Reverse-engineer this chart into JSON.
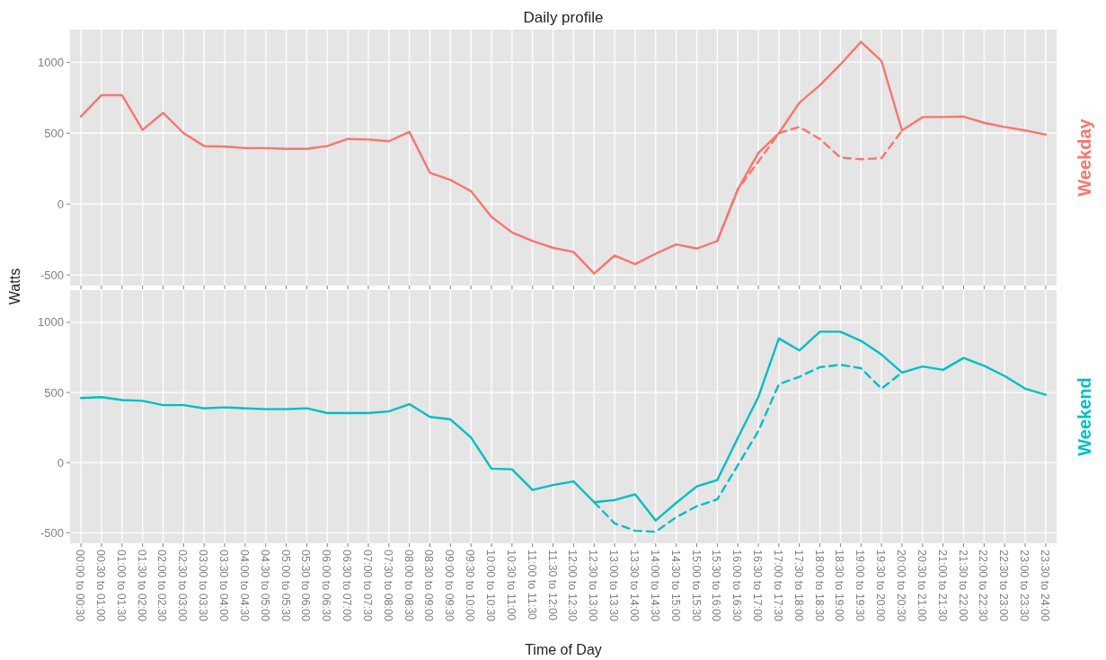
{
  "chart_data": [
    {
      "type": "line",
      "title": "Daily profile",
      "annotations": [
        "Weekday"
      ],
      "ylabel": "Watts",
      "tick_labels": "y",
      "grid": true,
      "ylim": [
        -575,
        1230
      ],
      "yticks": [
        -500,
        0,
        500,
        1000
      ],
      "categories": [
        null,
        null,
        null,
        null,
        null,
        null,
        null,
        null,
        null,
        null,
        null,
        null,
        null,
        null,
        null,
        null,
        null,
        null,
        null,
        null,
        null,
        null,
        null,
        null,
        null,
        null,
        null,
        null,
        null,
        null,
        null,
        null,
        null,
        null,
        null,
        null,
        null,
        null,
        null,
        null,
        null,
        null,
        null,
        null,
        null,
        null,
        null,
        null
      ],
      "series": [
        {
          "color": "#f8766d",
          "line_style": "solid",
          "values": [
            618,
            768,
            768,
            523,
            643,
            500,
            409,
            405,
            395,
            395,
            389,
            389,
            409,
            459,
            455,
            443,
            509,
            220,
            170,
            91,
            -91,
            -200,
            -261,
            -309,
            -338,
            -490,
            -363,
            -424,
            -350,
            -284,
            -314,
            -260,
            103,
            360,
            500,
            715,
            838,
            985,
            1144,
            1009,
            519,
            613,
            613,
            617,
            573,
            544,
            519,
            490
          ]
        },
        {
          "color": "#f8766d",
          "line_style": "dashed",
          "values": [
            null,
            null,
            null,
            null,
            null,
            null,
            null,
            null,
            null,
            null,
            null,
            null,
            null,
            null,
            null,
            null,
            null,
            null,
            null,
            null,
            null,
            null,
            null,
            null,
            null,
            null,
            null,
            null,
            null,
            null,
            null,
            -260,
            103,
            299,
            500,
            544,
            458,
            328,
            316,
            323,
            519,
            null,
            null,
            null,
            null,
            null,
            null,
            null
          ]
        }
      ]
    },
    {
      "type": "line",
      "annotations": [
        "Weekend"
      ],
      "xlabel": "Time of Day",
      "grid": true,
      "ylim": [
        -575,
        1230
      ],
      "yticks": [
        -500,
        0,
        500,
        1000
      ],
      "categories": [
        "00:00 to 00:30",
        "00:30 to 01:00",
        "01:00 to 01:30",
        "01:30 to 02:00",
        "02:00 to 02:30",
        "02:30 to 03:00",
        "03:00 to 03:30",
        "03:30 to 04:00",
        "04:00 to 04:30",
        "04:30 to 05:00",
        "05:00 to 05:30",
        "05:30 to 06:00",
        "06:00 to 06:30",
        "06:30 to 07:00",
        "07:00 to 07:30",
        "07:30 to 08:00",
        "08:00 to 08:30",
        "08:30 to 09:00",
        "09:00 to 09:30",
        "09:30 to 10:00",
        "10:00 to 10:30",
        "10:30 to 11:00",
        "11:00 to 11:30",
        "11:30 to 12:00",
        "12:00 to 12:30",
        "12:30 to 13:00",
        "13:00 to 13:30",
        "13:30 to 14:00",
        "14:00 to 14:30",
        "14:30 to 15:00",
        "15:00 to 15:30",
        "15:30 to 16:00",
        "16:00 to 16:30",
        "16:30 to 17:00",
        "17:00 to 17:30",
        "17:30 to 18:00",
        "18:00 to 18:30",
        "18:30 to 19:00",
        "19:00 to 19:30",
        "19:30 to 20:00",
        "20:00 to 20:30",
        "20:30 to 21:00",
        "21:00 to 21:30",
        "21:30 to 22:00",
        "22:00 to 22:30",
        "22:30 to 23:00",
        "23:00 to 23:30",
        "23:30 to 24:00"
      ],
      "series": [
        {
          "color": "#00bfc4",
          "line_style": "solid",
          "values": [
            460,
            467,
            446,
            440,
            410,
            410,
            387,
            394,
            387,
            381,
            381,
            387,
            353,
            353,
            353,
            365,
            417,
            326,
            308,
            179,
            -43,
            -48,
            -195,
            -160,
            -134,
            -282,
            -267,
            -226,
            -413,
            -287,
            -170,
            -124,
            175,
            467,
            885,
            799,
            933,
            933,
            868,
            770,
            642,
            685,
            661,
            746,
            690,
            617,
            527,
            484
          ]
        },
        {
          "color": "#00bfc4",
          "line_style": "dashed",
          "values": [
            null,
            null,
            null,
            null,
            null,
            null,
            null,
            null,
            null,
            null,
            null,
            null,
            null,
            null,
            null,
            null,
            null,
            null,
            null,
            null,
            null,
            null,
            null,
            null,
            null,
            -282,
            -433,
            -486,
            -493,
            -389,
            -311,
            -262,
            -19,
            224,
            559,
            612,
            680,
            697,
            673,
            527,
            642,
            null,
            null,
            null,
            null,
            null,
            null,
            null
          ]
        }
      ]
    }
  ]
}
